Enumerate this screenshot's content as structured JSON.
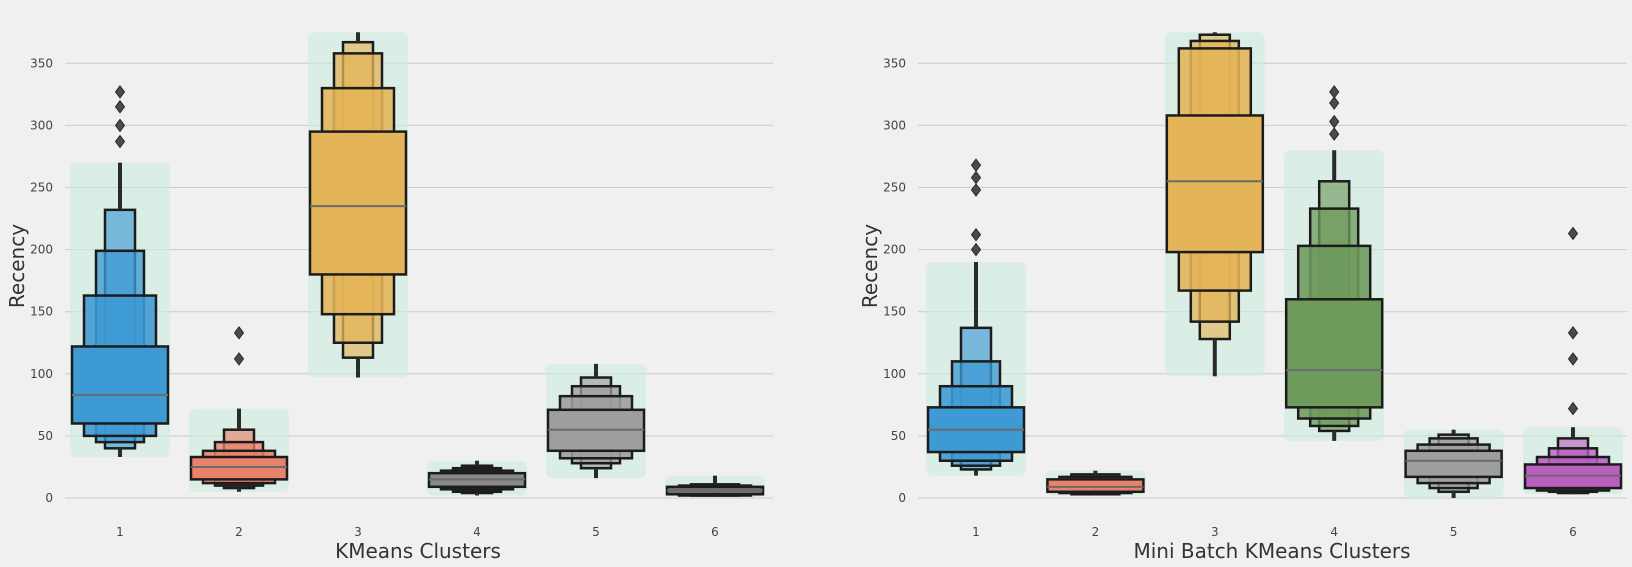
{
  "figure": {
    "style": "fivethirtyeight",
    "background": "#f0f0f0",
    "swarm_color": "#c9ecdd"
  },
  "chart_data": [
    {
      "type": "boxen",
      "overlay": "swarm",
      "title": "",
      "xlabel": "KMeans Clusters",
      "ylabel": "Recency",
      "categories": [
        "1",
        "2",
        "3",
        "4",
        "5",
        "6"
      ],
      "y_ticks": [
        0,
        50,
        100,
        150,
        200,
        250,
        300,
        350
      ],
      "ylim": [
        0,
        375
      ],
      "grid": "horizontal",
      "series": [
        {
          "cluster": "1",
          "color": "#3e9ad4",
          "median": 83,
          "boxes": [
            [
              60,
              122
            ],
            [
              50,
              163
            ],
            [
              45,
              199
            ],
            [
              40,
              232
            ]
          ],
          "whisker": [
            33,
            270
          ],
          "outliers": [
            287,
            300,
            315,
            327
          ]
        },
        {
          "cluster": "2",
          "color": "#e8826b",
          "median": 25,
          "boxes": [
            [
              15,
              33
            ],
            [
              12,
              38
            ],
            [
              10,
              45
            ],
            [
              8,
              55
            ]
          ],
          "whisker": [
            5,
            72
          ],
          "outliers": [
            112,
            133
          ]
        },
        {
          "cluster": "3",
          "color": "#e4b458",
          "median": 235,
          "boxes": [
            [
              180,
              295
            ],
            [
              148,
              330
            ],
            [
              125,
              358
            ],
            [
              113,
              367
            ]
          ],
          "whisker": [
            97,
            375
          ],
          "outliers": []
        },
        {
          "cluster": "4",
          "color": "#8a8a8a",
          "median": 15,
          "boxes": [
            [
              9,
              20
            ],
            [
              7,
              22
            ],
            [
              5,
              24
            ],
            [
              4,
              26
            ]
          ],
          "whisker": [
            2,
            30
          ],
          "outliers": []
        },
        {
          "cluster": "5",
          "color": "#9e9e9e",
          "median": 55,
          "boxes": [
            [
              38,
              71
            ],
            [
              32,
              82
            ],
            [
              28,
              90
            ],
            [
              24,
              97
            ]
          ],
          "whisker": [
            16,
            108
          ],
          "outliers": []
        },
        {
          "cluster": "6",
          "color": "#6f6f6f",
          "median": 6,
          "boxes": [
            [
              3,
              9
            ],
            [
              2,
              10
            ],
            [
              2,
              11
            ]
          ],
          "whisker": [
            1,
            18
          ],
          "outliers": []
        }
      ]
    },
    {
      "type": "boxen",
      "overlay": "swarm",
      "title": "",
      "xlabel": "Mini Batch KMeans Clusters",
      "ylabel": "Recency",
      "categories": [
        "1",
        "2",
        "3",
        "4",
        "5",
        "6"
      ],
      "y_ticks": [
        0,
        50,
        100,
        150,
        200,
        250,
        300,
        350
      ],
      "ylim": [
        0,
        375
      ],
      "grid": "horizontal",
      "series": [
        {
          "cluster": "1",
          "color": "#3e9ad4",
          "median": 55,
          "boxes": [
            [
              37,
              73
            ],
            [
              30,
              90
            ],
            [
              26,
              110
            ],
            [
              23,
              137
            ]
          ],
          "whisker": [
            18,
            190
          ],
          "outliers": [
            200,
            212,
            248,
            258,
            268
          ]
        },
        {
          "cluster": "2",
          "color": "#e8826b",
          "median": 9,
          "boxes": [
            [
              5,
              15
            ],
            [
              4,
              17
            ],
            [
              3,
              19
            ]
          ],
          "whisker": [
            2,
            22
          ],
          "outliers": []
        },
        {
          "cluster": "3",
          "color": "#e4b458",
          "median": 255,
          "boxes": [
            [
              198,
              308
            ],
            [
              167,
              362
            ],
            [
              142,
              368
            ],
            [
              128,
              373
            ]
          ],
          "whisker": [
            98,
            375
          ],
          "outliers": []
        },
        {
          "cluster": "4",
          "color": "#6e9a5c",
          "median": 103,
          "boxes": [
            [
              73,
              160
            ],
            [
              64,
              203
            ],
            [
              58,
              233
            ],
            [
              54,
              255
            ]
          ],
          "whisker": [
            46,
            280
          ],
          "outliers": [
            293,
            303,
            318,
            327
          ]
        },
        {
          "cluster": "5",
          "color": "#9e9e9e",
          "median": 30,
          "boxes": [
            [
              17,
              38
            ],
            [
              12,
              43
            ],
            [
              8,
              48
            ],
            [
              5,
              51
            ]
          ],
          "whisker": [
            0,
            55
          ],
          "outliers": []
        },
        {
          "cluster": "6",
          "color": "#b85fbf",
          "median": 18,
          "boxes": [
            [
              8,
              27
            ],
            [
              6,
              33
            ],
            [
              5,
              40
            ],
            [
              4,
              48
            ]
          ],
          "whisker": [
            3,
            57
          ],
          "outliers": [
            72,
            112,
            133,
            213
          ]
        }
      ]
    }
  ]
}
